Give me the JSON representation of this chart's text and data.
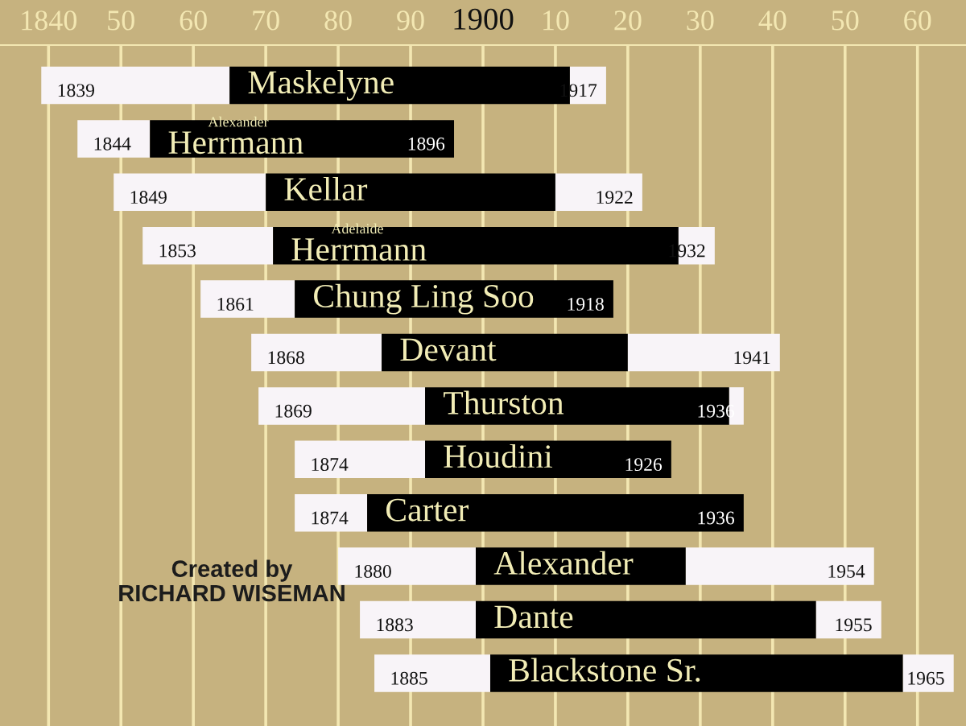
{
  "chart_data": {
    "type": "bar",
    "orientation": "horizontal",
    "categories": [
      "Maskelyne",
      "Alexander\nHerrmann",
      "Kellar",
      "Adelaide\nHerrmann",
      "Chung Ling Soo",
      "Devant",
      "Thurston",
      "Houdini",
      "Carter",
      "Alexander",
      "Dante",
      "Blackstone Sr."
    ],
    "series": [
      {
        "color": "#f8f4f8",
        "base": [
          1839,
          1844,
          1849,
          1853,
          1861,
          1868,
          1869,
          1874,
          1874,
          1880,
          1883,
          1885
        ],
        "values": [
          26,
          10,
          21,
          18,
          13,
          18,
          23,
          18,
          10,
          19,
          16,
          16
        ]
      },
      {
        "color": "#000000",
        "base": [
          1865,
          1854,
          1870,
          1871,
          1874,
          1886,
          1892,
          1892,
          1884,
          1899,
          1899,
          1901
        ],
        "values": [
          47,
          42,
          40,
          56,
          44,
          34,
          42,
          34,
          52,
          29,
          47,
          57
        ]
      },
      {
        "color": "#f8f4f8",
        "base": [
          1912,
          null,
          1910,
          1927,
          null,
          1920,
          1934,
          null,
          null,
          1928,
          1946,
          1958
        ],
        "values": [
          5,
          null,
          12,
          5,
          null,
          21,
          2,
          null,
          null,
          26,
          9,
          7
        ]
      }
    ],
    "xlim": [
      1833.3,
      1966.7
    ],
    "xticks": [
      1840,
      {
        "value": 1850,
        "label": "50"
      },
      {
        "value": 1860,
        "label": "60"
      },
      {
        "value": 1870,
        "label": "70"
      },
      {
        "value": 1880,
        "label": "80"
      },
      {
        "value": 1890,
        "label": "90"
      },
      1900,
      {
        "value": 1910,
        "label": "10"
      },
      {
        "value": 1920,
        "label": "20"
      },
      {
        "value": 1930,
        "label": "30"
      },
      {
        "value": 1940,
        "label": "40"
      },
      {
        "value": 1950,
        "label": "50"
      },
      {
        "value": 1960,
        "label": "60"
      }
    ],
    "grid": "x",
    "annotations": [
      {
        "text": "1839",
        "x": 1839,
        "y": "Maskelyne"
      },
      {
        "text": "1917",
        "x": 1917,
        "y": "Maskelyne"
      },
      {
        "text": "1844",
        "x": 1844,
        "y": "Alexander\nHerrmann"
      },
      {
        "text": "1896",
        "x": 1896,
        "y": "Alexander\nHerrmann"
      },
      {
        "text": "1849",
        "x": 1849,
        "y": "Kellar"
      },
      {
        "text": "1922",
        "x": 1922,
        "y": "Kellar"
      },
      {
        "text": "1853",
        "x": 1853,
        "y": "Adelaide\nHerrmann"
      },
      {
        "text": "1932",
        "x": 1932,
        "y": "Adelaide\nHerrmann"
      },
      {
        "text": "1861",
        "x": 1861,
        "y": "Chung Ling Soo"
      },
      {
        "text": "1918",
        "x": 1918,
        "y": "Chung Ling Soo"
      },
      {
        "text": "1868",
        "x": 1868,
        "y": "Devant"
      },
      {
        "text": "1941",
        "x": 1941,
        "y": "Devant"
      },
      {
        "text": "1869",
        "x": 1869,
        "y": "Thurston"
      },
      {
        "text": "1936",
        "x": 1936,
        "y": "Thurston"
      },
      {
        "text": "1874",
        "x": 1874,
        "y": "Houdini"
      },
      {
        "text": "1926",
        "x": 1926,
        "y": "Houdini"
      },
      {
        "text": "1874",
        "x": 1874,
        "y": "Carter"
      },
      {
        "text": "1936",
        "x": 1936,
        "y": "Carter"
      },
      {
        "text": "1880",
        "x": 1880,
        "y": "Alexander"
      },
      {
        "text": "1954",
        "x": 1954,
        "y": "Alexander"
      },
      {
        "text": "1883",
        "x": 1883,
        "y": "Dante"
      },
      {
        "text": "1955",
        "x": 1955,
        "y": "Dante"
      },
      {
        "text": "1885",
        "x": 1885,
        "y": "Blackstone Sr."
      },
      {
        "text": "1965",
        "x": 1965,
        "y": "Blackstone Sr."
      },
      "Created by\nRICHARD WISEMAN"
    ]
  }
}
